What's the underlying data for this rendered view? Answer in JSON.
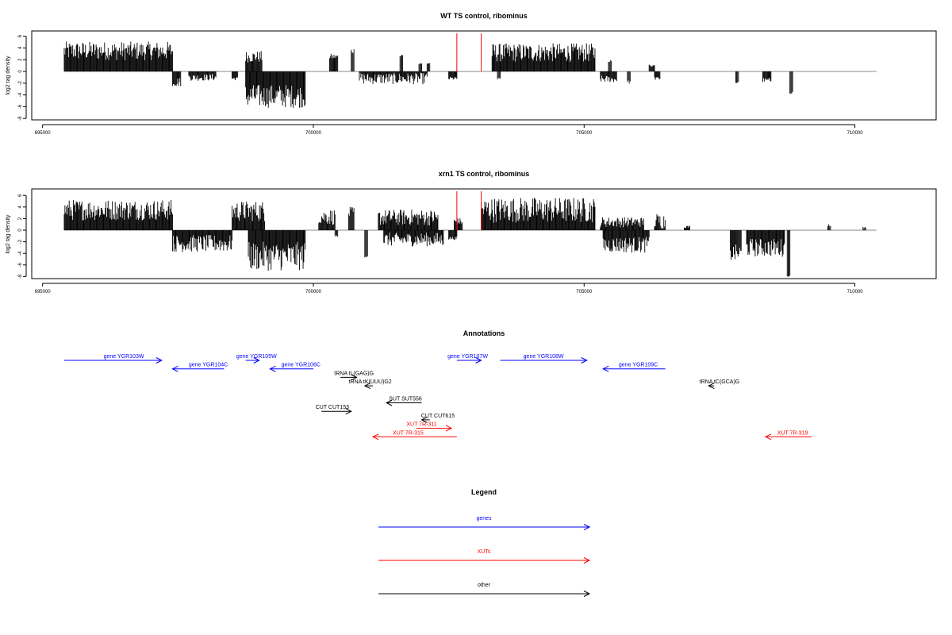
{
  "chart_data": [
    {
      "type": "bar",
      "title": "WT TS control, ribominus",
      "ylabel": "log2 tag density",
      "xlim": [
        694800,
        711500
      ],
      "ylim": [
        -8,
        7
      ],
      "x_ticks": [
        695000,
        700000,
        705000,
        710000
      ],
      "x_tick_labels": [
        "695000",
        "700000",
        "705000",
        "710000"
      ],
      "y_ticks": [
        -8,
        -6,
        -4,
        -2,
        0,
        2,
        4,
        6
      ],
      "y_tick_labels": [
        "-8",
        "-6",
        "-4",
        "-2",
        "0",
        "2",
        "4",
        "6"
      ],
      "baseline": [
        695400,
        710400
      ],
      "markers": [
        702650,
        703100
      ],
      "series": [
        {
          "sign": "positive",
          "segments": [
            {
              "x": [
                695400,
                697400
              ],
              "value": 3.5,
              "amp": 1.6
            },
            {
              "x": [
                698750,
                699050
              ],
              "value": 2.5,
              "amp": 1.0
            },
            {
              "x": [
                700300,
                700450
              ],
              "value": 2.5,
              "amp": 0.5
            },
            {
              "x": [
                700700,
                700750
              ],
              "value": 3.5,
              "amp": 0.5
            },
            {
              "x": [
                701600,
                701650
              ],
              "value": 2.8,
              "amp": 0.2
            },
            {
              "x": [
                701950,
                702000
              ],
              "value": 1.3,
              "amp": 0.2
            },
            {
              "x": [
                702100,
                702150
              ],
              "value": 1.4,
              "amp": 0.2
            },
            {
              "x": [
                703300,
                705200
              ],
              "value": 3.2,
              "amp": 1.6
            },
            {
              "x": [
                705450,
                705500
              ],
              "value": 1.8,
              "amp": 0.2
            },
            {
              "x": [
                706200,
                706300
              ],
              "value": 1.0,
              "amp": 0.2
            }
          ]
        },
        {
          "sign": "negative",
          "segments": [
            {
              "x": [
                697400,
                697550
              ],
              "value": -1.8,
              "amp": 0.8
            },
            {
              "x": [
                697700,
                698200
              ],
              "value": -1.0,
              "amp": 0.6
            },
            {
              "x": [
                698500,
                698600
              ],
              "value": -1.2,
              "amp": 0.3
            },
            {
              "x": [
                698750,
                699850
              ],
              "value": -4.2,
              "amp": 2.0
            },
            {
              "x": [
                700850,
                702100
              ],
              "value": -1.2,
              "amp": 1.0
            },
            {
              "x": [
                702500,
                702650
              ],
              "value": -1.2,
              "amp": 0.3
            },
            {
              "x": [
                703400,
                703450
              ],
              "value": -1.3,
              "amp": 0.2
            },
            {
              "x": [
                705300,
                705600
              ],
              "value": -1.3,
              "amp": 0.6
            },
            {
              "x": [
                705800,
                705850
              ],
              "value": -1.8,
              "amp": 0.3
            },
            {
              "x": [
                706300,
                706400
              ],
              "value": -1.2,
              "amp": 0.3
            },
            {
              "x": [
                707800,
                707850
              ],
              "value": -1.9,
              "amp": 0.2
            },
            {
              "x": [
                708300,
                708450
              ],
              "value": -1.5,
              "amp": 0.4
            },
            {
              "x": [
                708800,
                708850
              ],
              "value": -3.6,
              "amp": 0.2
            }
          ]
        }
      ]
    },
    {
      "type": "bar",
      "title": "xrn1 TS control, ribominus",
      "ylabel": "log2 tag density",
      "xlim": [
        694800,
        711500
      ],
      "ylim": [
        -8,
        7
      ],
      "x_ticks": [
        695000,
        700000,
        705000,
        710000
      ],
      "x_tick_labels": [
        "695000",
        "700000",
        "705000",
        "710000"
      ],
      "y_ticks": [
        -8,
        -6,
        -4,
        -2,
        0,
        2,
        4,
        6
      ],
      "y_tick_labels": [
        "-8",
        "-6",
        "-4",
        "-2",
        "0",
        "2",
        "4",
        "6"
      ],
      "baseline": [
        695400,
        710400
      ],
      "markers": [
        702650,
        703100
      ],
      "series": [
        {
          "sign": "positive",
          "segments": [
            {
              "x": [
                695400,
                697400
              ],
              "value": 3.5,
              "amp": 1.8
            },
            {
              "x": [
                698500,
                699100
              ],
              "value": 3.3,
              "amp": 1.8
            },
            {
              "x": [
                700100,
                700400
              ],
              "value": 2.3,
              "amp": 1.4
            },
            {
              "x": [
                700650,
                700750
              ],
              "value": 3.0,
              "amp": 1.0
            },
            {
              "x": [
                701200,
                702300
              ],
              "value": 2.2,
              "amp": 1.4
            },
            {
              "x": [
                702600,
                702750
              ],
              "value": 1.5,
              "amp": 0.6
            },
            {
              "x": [
                703100,
                705200
              ],
              "value": 3.5,
              "amp": 2.2
            },
            {
              "x": [
                705300,
                706100
              ],
              "value": 1.4,
              "amp": 0.9
            },
            {
              "x": [
                706300,
                706500
              ],
              "value": 1.6,
              "amp": 1.4
            },
            {
              "x": [
                706850,
                706950
              ],
              "value": 0.6,
              "amp": 0.2
            },
            {
              "x": [
                709500,
                709550
              ],
              "value": 0.9,
              "amp": 0.2
            },
            {
              "x": [
                710150,
                710200
              ],
              "value": 0.5,
              "amp": 0.2
            }
          ]
        },
        {
          "sign": "negative",
          "segments": [
            {
              "x": [
                697400,
                698500
              ],
              "value": -2.3,
              "amp": 1.5
            },
            {
              "x": [
                698800,
                699850
              ],
              "value": -4.5,
              "amp": 2.5
            },
            {
              "x": [
                700400,
                700450
              ],
              "value": -1.0,
              "amp": 0.3
            },
            {
              "x": [
                700950,
                701000
              ],
              "value": -4.5,
              "amp": 0.2
            },
            {
              "x": [
                701300,
                702400
              ],
              "value": -1.6,
              "amp": 1.2
            },
            {
              "x": [
                702500,
                702650
              ],
              "value": -1.4,
              "amp": 0.3
            },
            {
              "x": [
                705350,
                706200
              ],
              "value": -2.5,
              "amp": 1.4
            },
            {
              "x": [
                707700,
                707900
              ],
              "value": -4.0,
              "amp": 1.5
            },
            {
              "x": [
                708000,
                708700
              ],
              "value": -3.0,
              "amp": 1.6
            },
            {
              "x": [
                708750,
                708800
              ],
              "value": -8.0,
              "amp": 0.2
            }
          ]
        }
      ]
    }
  ],
  "annotations": {
    "title": "Annotations",
    "items": [
      {
        "label": "gene YGR103W",
        "start": 695400,
        "end": 697200,
        "dir": 1,
        "row": 0,
        "color": "#0000ff",
        "label_x": 696500
      },
      {
        "label": "gene YGR104C",
        "start": 697400,
        "end": 698350,
        "dir": -1,
        "row": 1,
        "color": "#0000ff",
        "label_x": 698060
      },
      {
        "label": "gene YGR105W",
        "start": 698750,
        "end": 699000,
        "dir": 1,
        "row": 0,
        "color": "#0000ff",
        "label_x": 698950
      },
      {
        "label": "gene YGR106C",
        "start": 699200,
        "end": 700000,
        "dir": -1,
        "row": 1,
        "color": "#0000ff",
        "label_x": 699770
      },
      {
        "label": "tRNA tL(GAG)G",
        "start": 700500,
        "end": 700800,
        "dir": 1,
        "row": 2,
        "color": "#000000",
        "label_x": 700750
      },
      {
        "label": "tRNA tK(UUU)G2",
        "start": 700950,
        "end": 701100,
        "dir": -1,
        "row": 3,
        "color": "#000000",
        "label_x": 701050
      },
      {
        "label": "gene YGR107W",
        "start": 702650,
        "end": 703100,
        "dir": 1,
        "row": 0,
        "color": "#0000ff",
        "label_x": 702850
      },
      {
        "label": "gene YGR108W",
        "start": 703450,
        "end": 705050,
        "dir": 1,
        "row": 0,
        "color": "#0000ff",
        "label_x": 704250
      },
      {
        "label": "gene YGR109C",
        "start": 705350,
        "end": 706500,
        "dir": -1,
        "row": 1,
        "color": "#0000ff",
        "label_x": 706000
      },
      {
        "label": "tRNA tC(GCA)G",
        "start": 707300,
        "end": 707400,
        "dir": -1,
        "row": 3,
        "color": "#000000",
        "label_x": 707500
      },
      {
        "label": "SUT SUT556",
        "start": 701350,
        "end": 702000,
        "dir": -1,
        "row": 5,
        "color": "#000000",
        "label_x": 701700
      },
      {
        "label": "CUT CUT153",
        "start": 700150,
        "end": 700700,
        "dir": 1,
        "row": 6,
        "color": "#000000",
        "label_x": 700350
      },
      {
        "label": "CUT CUT615",
        "start": 702000,
        "end": 702150,
        "dir": -1,
        "row": 7,
        "color": "#000000",
        "label_x": 702300
      },
      {
        "label": "XUT 7R-311",
        "start": 701900,
        "end": 702550,
        "dir": 1,
        "row": 8,
        "color": "#ff0000",
        "label_x": 702000
      },
      {
        "label": "XUT 7R-315",
        "start": 701100,
        "end": 702650,
        "dir": -1,
        "row": 9,
        "color": "#ff0000",
        "label_x": 701750
      },
      {
        "label": "XUT 7R-319",
        "start": 708350,
        "end": 709200,
        "dir": -1,
        "row": 9,
        "color": "#ff0000",
        "label_x": 708850
      }
    ]
  },
  "legend": {
    "title": "Legend",
    "items": [
      {
        "label": "genes",
        "color": "#0000ff"
      },
      {
        "label": "XUTs",
        "color": "#ff0000"
      },
      {
        "label": "other",
        "color": "#000000"
      }
    ]
  }
}
